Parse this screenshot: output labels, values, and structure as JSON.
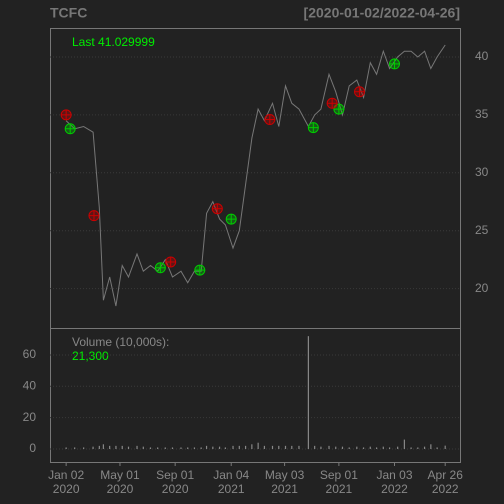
{
  "chart_data": [
    {
      "type": "line",
      "title": "TCFC",
      "subtitle": "[2020-01-02/2022-04-26]",
      "annotation": "Last 41.029999",
      "xlim": [
        "2019-11-27",
        "2022-05-29"
      ],
      "ylim": [
        16.6,
        42.5
      ],
      "yticks": [
        20,
        25,
        30,
        35,
        40
      ],
      "grid": true,
      "x": [
        "2020-01-02",
        "2020-01-21",
        "2020-02-10",
        "2020-03-02",
        "2020-03-16",
        "2020-03-25",
        "2020-04-08",
        "2020-04-22",
        "2020-05-06",
        "2020-05-20",
        "2020-06-08",
        "2020-06-22",
        "2020-07-08",
        "2020-07-24",
        "2020-08-10",
        "2020-08-26",
        "2020-09-14",
        "2020-09-29",
        "2020-10-14",
        "2020-10-29",
        "2020-11-10",
        "2020-11-24",
        "2020-12-09",
        "2020-12-22",
        "2021-01-08",
        "2021-01-22",
        "2021-02-05",
        "2021-02-19",
        "2021-03-05",
        "2021-03-19",
        "2021-04-06",
        "2021-04-20",
        "2021-05-05",
        "2021-05-19",
        "2021-06-04",
        "2021-06-25",
        "2021-07-09",
        "2021-07-23",
        "2021-08-10",
        "2021-08-25",
        "2021-09-09",
        "2021-09-24",
        "2021-10-11",
        "2021-10-26",
        "2021-11-10",
        "2021-11-24",
        "2021-12-09",
        "2021-12-23",
        "2022-01-10",
        "2022-01-25",
        "2022-02-09",
        "2022-02-24",
        "2022-03-11",
        "2022-03-25",
        "2022-04-08",
        "2022-04-26"
      ],
      "series": [
        {
          "color": "#777777",
          "values": [
            34.5,
            33.8,
            34,
            33.5,
            27,
            19,
            21,
            18.5,
            22,
            21,
            23,
            21.5,
            22,
            21.5,
            22.5,
            21,
            21.5,
            20.5,
            21.5,
            21.5,
            26.5,
            27.5,
            26,
            25.5,
            23.5,
            25,
            29,
            33,
            35.5,
            34.5,
            36,
            34,
            37.5,
            36,
            35.5,
            34,
            35,
            35.5,
            38.5,
            37,
            35,
            37.5,
            38,
            36.5,
            39.5,
            38.5,
            40.5,
            39,
            40,
            40.5,
            40.5,
            40,
            40.5,
            39,
            40,
            41.03
          ]
        }
      ],
      "markers": [
        {
          "color": "#00cc00",
          "x": [
            "2020-01-11",
            "2020-07-30",
            "2020-10-26",
            "2021-01-04",
            "2021-07-06",
            "2021-09-01",
            "2022-01-03"
          ],
          "values": [
            33.8,
            21.8,
            21.6,
            26,
            33.9,
            35.5,
            39.4
          ]
        },
        {
          "color": "#cc0000",
          "x": [
            "2020-01-02",
            "2020-03-04",
            "2020-08-22",
            "2020-12-04",
            "2021-03-31",
            "2021-08-17",
            "2021-10-17"
          ],
          "values": [
            35,
            26.3,
            22.3,
            26.9,
            34.6,
            36,
            37
          ]
        }
      ]
    },
    {
      "type": "bar",
      "annotation": "Volume (10,000s):",
      "last_value_label": "21,300",
      "xlim": [
        "2019-11-27",
        "2022-05-29"
      ],
      "ylim": [
        -8.3,
        77.2
      ],
      "yticks": [
        0,
        20,
        40,
        60
      ],
      "grid": true,
      "color": "#888888",
      "x": [
        "2020-01-02",
        "2020-01-21",
        "2020-02-10",
        "2020-03-02",
        "2020-03-16",
        "2020-03-25",
        "2020-04-08",
        "2020-04-22",
        "2020-05-06",
        "2020-05-20",
        "2020-06-08",
        "2020-06-22",
        "2020-07-08",
        "2020-07-24",
        "2020-08-10",
        "2020-08-26",
        "2020-09-14",
        "2020-09-29",
        "2020-10-14",
        "2020-10-29",
        "2020-11-10",
        "2020-11-24",
        "2020-12-09",
        "2020-12-22",
        "2021-01-08",
        "2021-01-22",
        "2021-02-05",
        "2021-02-19",
        "2021-03-05",
        "2021-03-19",
        "2021-04-06",
        "2021-04-20",
        "2021-05-05",
        "2021-05-19",
        "2021-06-04",
        "2021-06-25",
        "2021-07-09",
        "2021-07-23",
        "2021-08-10",
        "2021-08-25",
        "2021-09-09",
        "2021-09-24",
        "2021-10-11",
        "2021-10-26",
        "2021-11-10",
        "2021-11-24",
        "2021-12-09",
        "2021-12-23",
        "2022-01-10",
        "2022-01-25",
        "2022-02-09",
        "2022-02-24",
        "2022-03-11",
        "2022-03-25",
        "2022-04-08",
        "2022-04-26"
      ],
      "values": [
        1,
        1,
        1,
        1.5,
        2,
        3,
        2,
        2,
        2,
        1.5,
        2,
        1.5,
        1,
        1,
        1,
        1,
        1,
        1,
        1,
        1,
        2,
        1.5,
        1.5,
        1,
        2,
        2,
        2,
        3,
        4,
        2,
        2,
        2,
        2,
        2,
        2,
        72,
        2,
        1.5,
        2,
        1.5,
        1.5,
        1,
        1.5,
        1,
        1.5,
        1,
        1.5,
        1,
        1.5,
        6,
        1,
        1,
        1.5,
        3,
        1,
        2.13
      ],
      "xticks": [
        {
          "value": "2020-01-02",
          "label": "Jan 02",
          "year": "2020"
        },
        {
          "value": "2020-05-01",
          "label": "May 01",
          "year": "2020"
        },
        {
          "value": "2020-09-01",
          "label": "Sep 01",
          "year": "2020"
        },
        {
          "value": "2021-01-04",
          "label": "Jan 04",
          "year": "2021"
        },
        {
          "value": "2021-05-03",
          "label": "May 03",
          "year": "2021"
        },
        {
          "value": "2021-09-01",
          "label": "Sep 01",
          "year": "2021"
        },
        {
          "value": "2022-01-03",
          "label": "Jan 03",
          "year": "2022"
        },
        {
          "value": "2022-04-26",
          "label": "Apr 26",
          "year": "2022"
        }
      ]
    }
  ]
}
